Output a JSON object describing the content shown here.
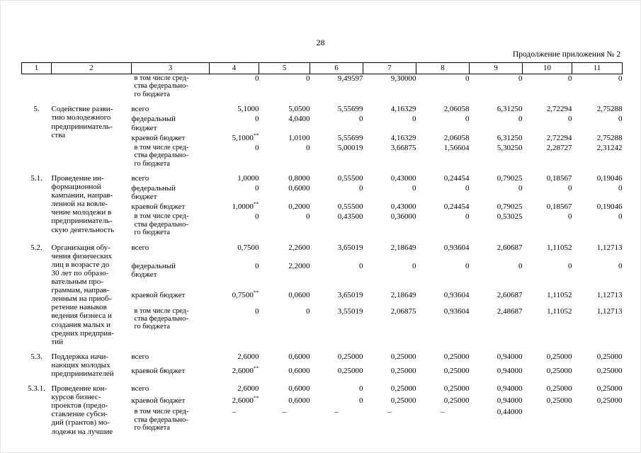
{
  "page": {
    "number": "28",
    "appendix_note": "Продолжение приложения № 2"
  },
  "table": {
    "columns": [
      "1",
      "2",
      "3",
      "4",
      "5",
      "6",
      "7",
      "8",
      "9",
      "10",
      "11"
    ],
    "groups": [
      {
        "num": "",
        "title": "",
        "rows": [
          {
            "source": "в том числе сред-\nства федерально-\nго бюджета",
            "small": true,
            "values": [
              "0",
              "0",
              "9,49597",
              "9,30000",
              "0",
              "0",
              "0",
              "0"
            ]
          }
        ]
      },
      {
        "num": "5.",
        "title": "Содействие разви-\nтию молодежного\nпредприниматель-\nства",
        "rows": [
          {
            "source": "всего",
            "values": [
              "5,1000",
              "5,0500",
              "5,55699",
              "4,16329",
              "2,06058",
              "6,31250",
              "2,72294",
              "2,75288"
            ]
          },
          {
            "source": "федеральный\nбюджет",
            "values": [
              "0",
              "4,0400",
              "0",
              "0",
              "0",
              "0",
              "0",
              "0"
            ]
          },
          {
            "source": "краевой бюджет",
            "values": [
              "5,1000**",
              "1,0100",
              "5,55699",
              "4,16329",
              "2,06058",
              "6,31250",
              "2,72294",
              "2,75288"
            ]
          },
          {
            "source": "в том числе сред-\nства федерально-\nго бюджета",
            "small": true,
            "values": [
              "0",
              "0",
              "5,00019",
              "3,66875",
              "1,56604",
              "5,30250",
              "2,28727",
              "2,31242"
            ]
          }
        ]
      },
      {
        "num": "5.1.",
        "title": "Проведение ин-\nформационной\nкампании, направ-\nленной на вовле-\nчение молодежи в\nпредприниматель-\nскую деятельность",
        "rows": [
          {
            "source": "всего",
            "values": [
              "1,0000",
              "0,8000",
              "0,55500",
              "0,43000",
              "0,24454",
              "0,79025",
              "0,18567",
              "0,19046"
            ]
          },
          {
            "source": "федеральный\nбюджет",
            "values": [
              "0",
              "0,6000",
              "0",
              "0",
              "0",
              "0",
              "0",
              "0"
            ]
          },
          {
            "source": "краевой бюджет",
            "values": [
              "1,0000**",
              "0,2000",
              "0,55500",
              "0,43000",
              "0,24454",
              "0,79025",
              "0,18567",
              "0,19046"
            ]
          },
          {
            "source": "в том числе сред-\nства федерально-\nго бюджета",
            "small": true,
            "values": [
              "0",
              "0",
              "0,43500",
              "0,36000",
              "0",
              "0,53025",
              "0",
              "0"
            ]
          }
        ]
      },
      {
        "num": "5.2.",
        "title": "Организация обу-\nчения физических\nлиц в возрасте до\n30 лет по образо-\nвательным про-\nграммам, направ-\nленным на приоб-\nретение навыков\nведения бизнеса и\nсоздания малых и\nсредних предприя-\nтий",
        "rows": [
          {
            "source": "всего",
            "values": [
              "0,7500",
              "2,2600",
              "3,65019",
              "2,18649",
              "0,93604",
              "2,60687",
              "1,11052",
              "1,12713"
            ]
          },
          {
            "source": "федеральный\nбюджет",
            "values": [
              "0",
              "2,2000",
              "0",
              "0",
              "0",
              "0",
              "0",
              "0"
            ]
          },
          {
            "source": "краевой бюджет",
            "values": [
              "0,7500**",
              "0,0600",
              "3,65019",
              "2,18649",
              "0,93604",
              "2,60687",
              "1,11052",
              "1,12713"
            ]
          },
          {
            "source": "в том числе сред-\nства федерально-\nго бюджета",
            "small": true,
            "values": [
              "0",
              "0",
              "3,55019",
              "2,06875",
              "0,93604",
              "2,48687",
              "1,11052",
              "1,12713"
            ]
          }
        ]
      },
      {
        "num": "5.3.",
        "title": "Поддержка начи-\nнающих молодых\nпредпринимателей",
        "rows": [
          {
            "source": "всего",
            "values": [
              "2,6000",
              "0,6000",
              "0,25000",
              "0,25000",
              "0,25000",
              "0,94000",
              "0,25000",
              "0,25000"
            ]
          },
          {
            "source": "краевой бюджет",
            "values": [
              "2,6000**",
              "0,6000",
              "0,25000",
              "0,25000",
              "0,25000",
              "0,94000",
              "0,25000",
              "0,25000"
            ]
          }
        ]
      },
      {
        "num": "5.3.1.",
        "title": "Проведение кон-\nкурсов бизнес-\nпроектов (предо-\nставление субси-\nдий (грантов) мо-\nлодежи на лучшие",
        "rows": [
          {
            "source": "всего",
            "values": [
              "2,6000",
              "0,6000",
              "0",
              "0,25000",
              "0,25000",
              "0,94000",
              "0,25000",
              "0,25000"
            ]
          },
          {
            "source": "краевой бюджет",
            "values": [
              "2,6000**",
              "0,6000",
              "0",
              "0,25000",
              "0,25000",
              "0,94000",
              "0,25000",
              "0,25000"
            ]
          },
          {
            "source": "в том числе сред-\nства федерально-\nго бюджета",
            "small": true,
            "values": [
              "–",
              "–",
              "–",
              "–",
              "–",
              "0,44000",
              "",
              ""
            ]
          }
        ]
      }
    ]
  }
}
